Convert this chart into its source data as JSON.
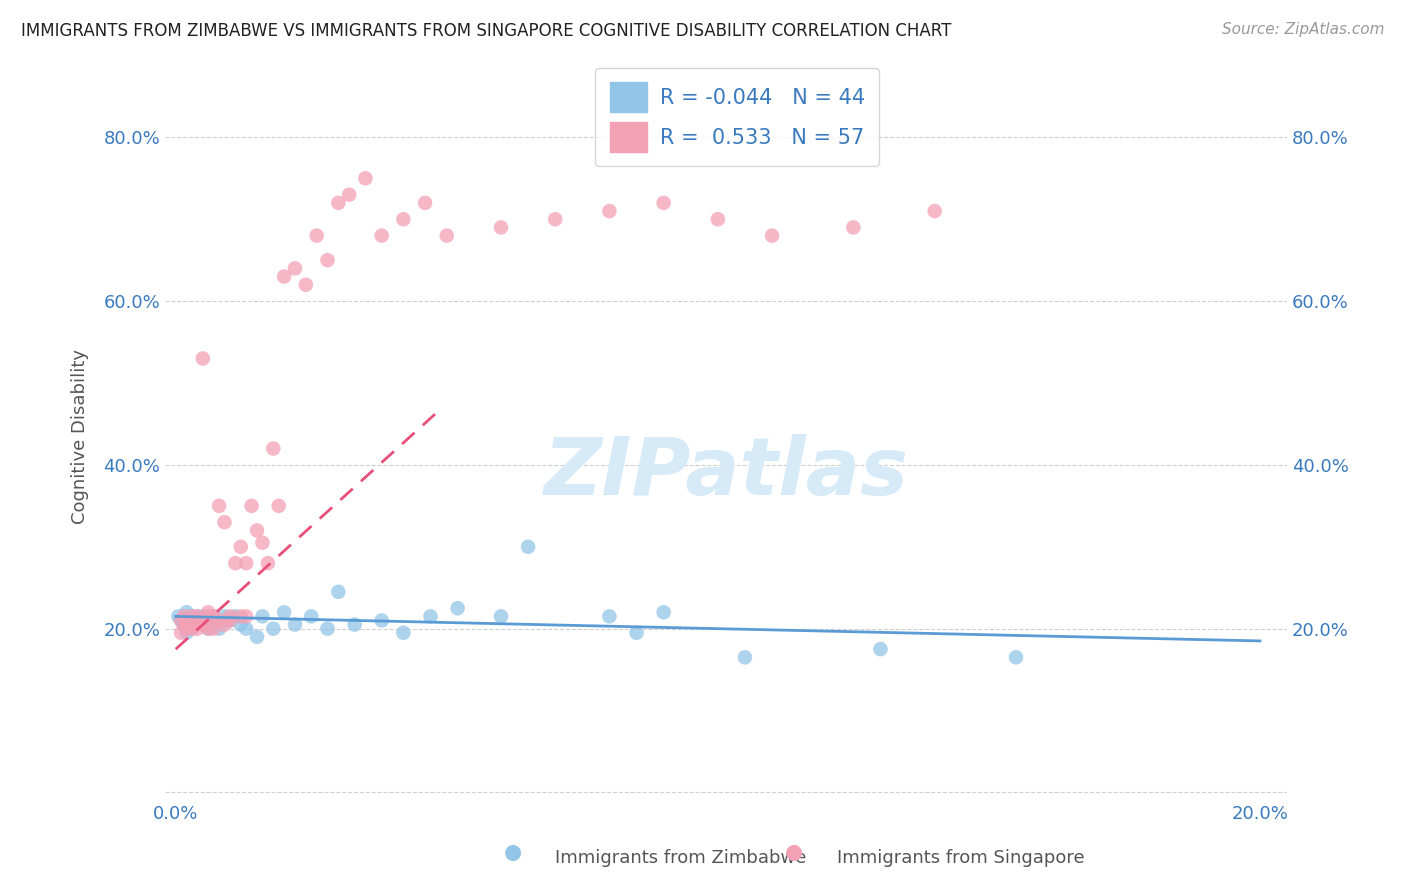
{
  "title": "IMMIGRANTS FROM ZIMBABWE VS IMMIGRANTS FROM SINGAPORE COGNITIVE DISABILITY CORRELATION CHART",
  "source": "Source: ZipAtlas.com",
  "xlabel_zimbabwe": "Immigrants from Zimbabwe",
  "xlabel_singapore": "Immigrants from Singapore",
  "ylabel": "Cognitive Disability",
  "xlim": [
    -0.002,
    0.205
  ],
  "ylim": [
    -0.01,
    0.88
  ],
  "R_zimbabwe": -0.044,
  "N_zimbabwe": 44,
  "R_singapore": 0.533,
  "N_singapore": 57,
  "color_zimbabwe": "#92c5e8",
  "color_singapore": "#f4a0b5",
  "line_color_zimbabwe": "#5b9bd5",
  "line_color_singapore": "#e8507a",
  "watermark_color": "#d6eaf8",
  "background_color": "#ffffff",
  "zimbabwe_x": [
    0.0005,
    0.001,
    0.0015,
    0.002,
    0.002,
    0.0025,
    0.003,
    0.003,
    0.003,
    0.004,
    0.004,
    0.005,
    0.005,
    0.006,
    0.006,
    0.007,
    0.007,
    0.008,
    0.009,
    0.01,
    0.011,
    0.012,
    0.013,
    0.015,
    0.016,
    0.018,
    0.02,
    0.022,
    0.025,
    0.028,
    0.03,
    0.033,
    0.038,
    0.042,
    0.047,
    0.052,
    0.06,
    0.065,
    0.08,
    0.085,
    0.09,
    0.105,
    0.13,
    0.155
  ],
  "zimbabwe_y": [
    0.215,
    0.21,
    0.205,
    0.22,
    0.195,
    0.21,
    0.215,
    0.205,
    0.2,
    0.21,
    0.215,
    0.205,
    0.215,
    0.21,
    0.2,
    0.215,
    0.205,
    0.2,
    0.215,
    0.21,
    0.215,
    0.205,
    0.2,
    0.19,
    0.215,
    0.2,
    0.22,
    0.205,
    0.215,
    0.2,
    0.245,
    0.205,
    0.21,
    0.195,
    0.215,
    0.225,
    0.215,
    0.3,
    0.215,
    0.195,
    0.22,
    0.165,
    0.175,
    0.165
  ],
  "singapore_x": [
    0.001,
    0.001,
    0.0015,
    0.002,
    0.002,
    0.002,
    0.003,
    0.003,
    0.003,
    0.004,
    0.004,
    0.004,
    0.005,
    0.005,
    0.005,
    0.006,
    0.006,
    0.006,
    0.007,
    0.007,
    0.008,
    0.008,
    0.009,
    0.009,
    0.01,
    0.01,
    0.011,
    0.012,
    0.012,
    0.013,
    0.013,
    0.014,
    0.015,
    0.016,
    0.017,
    0.018,
    0.019,
    0.02,
    0.022,
    0.024,
    0.026,
    0.028,
    0.03,
    0.032,
    0.035,
    0.038,
    0.042,
    0.046,
    0.05,
    0.06,
    0.07,
    0.08,
    0.09,
    0.1,
    0.11,
    0.125,
    0.14
  ],
  "singapore_y": [
    0.21,
    0.195,
    0.215,
    0.21,
    0.205,
    0.2,
    0.215,
    0.205,
    0.2,
    0.21,
    0.215,
    0.2,
    0.53,
    0.21,
    0.205,
    0.215,
    0.2,
    0.22,
    0.215,
    0.2,
    0.35,
    0.21,
    0.33,
    0.205,
    0.215,
    0.21,
    0.28,
    0.3,
    0.215,
    0.28,
    0.215,
    0.35,
    0.32,
    0.305,
    0.28,
    0.42,
    0.35,
    0.63,
    0.64,
    0.62,
    0.68,
    0.65,
    0.72,
    0.73,
    0.75,
    0.68,
    0.7,
    0.72,
    0.68,
    0.69,
    0.7,
    0.71,
    0.72,
    0.7,
    0.68,
    0.69,
    0.71
  ]
}
